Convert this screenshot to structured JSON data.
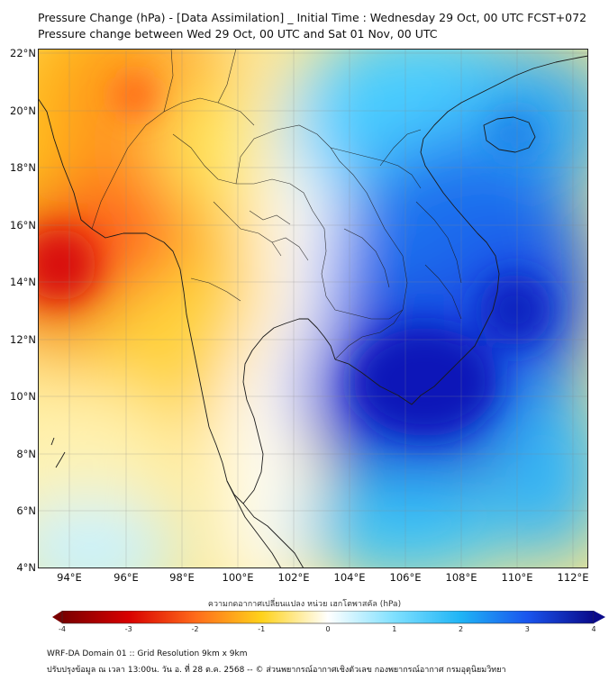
{
  "title": {
    "line1": "Pressure Change (hPa) - [Data Assimilation] _ Initial Time : Wednesday 29 Oct, 00 UTC FCST+072",
    "line2": "Pressure change between Wed 29 Oct, 00 UTC and Sat 01 Nov, 00 UTC"
  },
  "map": {
    "lat_labels": [
      "22°N",
      "20°N",
      "18°N",
      "16°N",
      "14°N",
      "12°N",
      "10°N",
      "8°N",
      "6°N",
      "4°N"
    ],
    "lon_labels": [
      "94°E",
      "96°E",
      "98°E",
      "100°E",
      "102°E",
      "104°E",
      "106°E",
      "108°E",
      "110°E",
      "112°E"
    ],
    "field": "pressure change",
    "unit": "hPa"
  },
  "colorbar": {
    "title": "ความกดอากาศเปลี่ยนแปลง หน่วย เฮกโตพาสคัล (hPa)",
    "ticks": [
      "-4",
      "-3",
      "-2",
      "-1",
      "0",
      "1",
      "2",
      "3",
      "4"
    ],
    "range": [
      -4,
      4
    ],
    "colors": {
      "neg4": "#7a0000",
      "neg3": "#d80000",
      "neg2": "#ff6a1a",
      "neg1": "#ffd21a",
      "zero": "#ffffff",
      "pos1": "#7fe0ff",
      "pos2": "#1fb4f5",
      "pos3": "#1a55ee",
      "pos4": "#0a0a8a"
    }
  },
  "footer": {
    "line1": "WRF-DA Domain 01 :: Grid Resolution 9km x 9km",
    "line2": "ปรับปรุงข้อมูล ณ เวลา 13:00น. วัน อ. ที่ 28 ต.ค. 2568 -- © ส่วนพยากรณ์อากาศเชิงตัวเลข กองพยากรณ์อากาศ กรมอุตุนิยมวิทยา"
  }
}
